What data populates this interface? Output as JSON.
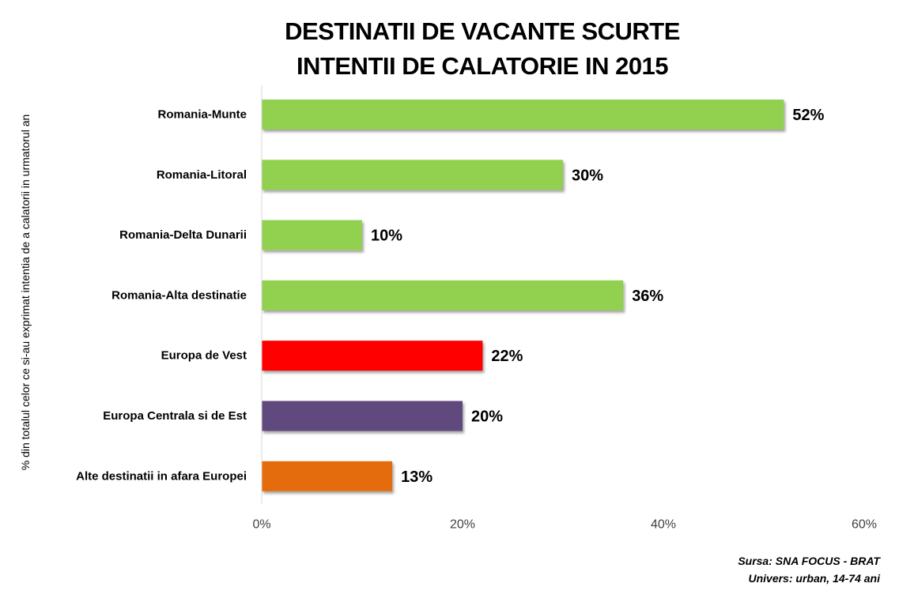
{
  "chart_data": {
    "type": "bar",
    "orientation": "horizontal",
    "title": [
      "DESTINATII DE VACANTE SCURTE",
      "INTENTII DE CALATORIE IN 2015"
    ],
    "ylabel": "% din totalul celor  ce si-au exprimat  intentia de  a calatorii in urmatorul an",
    "xlabel": "",
    "xlim": [
      0,
      60
    ],
    "x_ticks": [
      0,
      20,
      40,
      60
    ],
    "x_tick_labels": [
      "0%",
      "20%",
      "40%",
      "60%"
    ],
    "grid": false,
    "legend": "none",
    "categories": [
      "Romania-Munte",
      "Romania-Litoral",
      "Romania-Delta Dunarii",
      "Romania-Alta destinatie",
      "Europa de Vest",
      "Europa Centrala si de Est",
      "Alte destinatii in afara Europei"
    ],
    "values": [
      52,
      30,
      10,
      36,
      22,
      20,
      13
    ],
    "value_labels": [
      "52%",
      "30%",
      "10%",
      "36%",
      "22%",
      "20%",
      "13%"
    ],
    "colors": [
      "#92d050",
      "#92d050",
      "#92d050",
      "#92d050",
      "#ff0000",
      "#604a7b",
      "#e46c0a"
    ]
  },
  "source": {
    "line1": "Sursa: SNA FOCUS - BRAT",
    "line2": "Univers: urban, 14-74 ani"
  }
}
